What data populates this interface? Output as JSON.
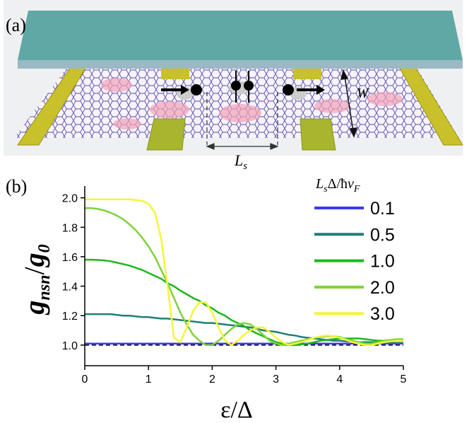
{
  "panel_a": {
    "label": "(a)",
    "width_label": "W",
    "length_label": {
      "main": "L",
      "sub": "s"
    }
  },
  "chart_data": {
    "type": "line",
    "panel_label": "(b)",
    "x_label": "ε/Δ",
    "y_label": {
      "main": "g",
      "sub": "nsn",
      "sep": "/",
      "main2": "g",
      "sub2": "0"
    },
    "legend_title": {
      "a": "L",
      "a_sub": "s",
      "b": "Δ/ħ",
      "c": "v",
      "c_sub": "F"
    },
    "x": [
      0,
      0.1,
      0.2,
      0.3,
      0.4,
      0.5,
      0.6,
      0.7,
      0.8,
      0.9,
      1.0,
      1.1,
      1.2,
      1.3,
      1.4,
      1.5,
      1.6,
      1.7,
      1.8,
      1.9,
      2.0,
      2.1,
      2.2,
      2.3,
      2.4,
      2.5,
      2.6,
      2.7,
      2.8,
      2.9,
      3.0,
      3.1,
      3.2,
      3.3,
      3.4,
      3.5,
      3.6,
      3.7,
      3.8,
      3.9,
      4.0,
      4.1,
      4.2,
      4.3,
      4.4,
      4.5,
      4.6,
      4.7,
      4.8,
      4.9,
      5.0
    ],
    "series": [
      {
        "name": "0.1",
        "color": "#3b3bf0",
        "values": [
          1.01,
          1.01,
          1.01,
          1.01,
          1.01,
          1.01,
          1.01,
          1.01,
          1.01,
          1.01,
          1.01,
          1.01,
          1.01,
          1.01,
          1.01,
          1.01,
          1.01,
          1.01,
          1.01,
          1.01,
          1.01,
          1.01,
          1.01,
          1.01,
          1.01,
          1.01,
          1.01,
          1.01,
          1.01,
          1.01,
          1.01,
          1.01,
          1.01,
          1.01,
          1.01,
          1.01,
          1.01,
          1.01,
          1.01,
          1.01,
          1.01,
          1.01,
          1.01,
          1.01,
          1.01,
          1.01,
          1.01,
          1.01,
          1.01,
          1.01,
          1.01
        ]
      },
      {
        "name": "0.5",
        "color": "#1f7f7a",
        "values": [
          1.21,
          1.21,
          1.21,
          1.21,
          1.21,
          1.205,
          1.2,
          1.2,
          1.195,
          1.19,
          1.19,
          1.185,
          1.18,
          1.18,
          1.175,
          1.17,
          1.165,
          1.16,
          1.155,
          1.15,
          1.15,
          1.145,
          1.14,
          1.135,
          1.13,
          1.125,
          1.12,
          1.11,
          1.1,
          1.095,
          1.09,
          1.08,
          1.07,
          1.065,
          1.055,
          1.05,
          1.045,
          1.04,
          1.035,
          1.03,
          1.03,
          1.025,
          1.025,
          1.02,
          1.02,
          1.02,
          1.02,
          1.015,
          1.015,
          1.015,
          1.015
        ]
      },
      {
        "name": "1.0",
        "color": "#1cb81c",
        "values": [
          1.58,
          1.58,
          1.578,
          1.575,
          1.57,
          1.56,
          1.55,
          1.54,
          1.525,
          1.51,
          1.49,
          1.47,
          1.45,
          1.42,
          1.4,
          1.37,
          1.345,
          1.32,
          1.3,
          1.27,
          1.25,
          1.22,
          1.2,
          1.17,
          1.15,
          1.13,
          1.1,
          1.08,
          1.06,
          1.04,
          1.02,
          1.01,
          1.0,
          1.0,
          1.005,
          1.01,
          1.02,
          1.03,
          1.035,
          1.04,
          1.045,
          1.045,
          1.045,
          1.045,
          1.04,
          1.035,
          1.03,
          1.03,
          1.03,
          1.03,
          1.03
        ]
      },
      {
        "name": "2.0",
        "color": "#7fd33a",
        "values": [
          1.93,
          1.93,
          1.925,
          1.915,
          1.9,
          1.88,
          1.855,
          1.82,
          1.78,
          1.73,
          1.67,
          1.6,
          1.51,
          1.42,
          1.32,
          1.22,
          1.14,
          1.07,
          1.03,
          1.0,
          1.0,
          1.03,
          1.07,
          1.11,
          1.14,
          1.15,
          1.14,
          1.11,
          1.07,
          1.03,
          1.01,
          1.0,
          1.01,
          1.02,
          1.03,
          1.04,
          1.05,
          1.055,
          1.06,
          1.06,
          1.055,
          1.04,
          1.03,
          1.02,
          1.01,
          1.01,
          1.02,
          1.03,
          1.035,
          1.04,
          1.04
        ]
      },
      {
        "name": "3.0",
        "color": "#f5f53a",
        "values": [
          1.99,
          1.99,
          1.99,
          1.99,
          1.99,
          1.99,
          1.99,
          1.99,
          1.985,
          1.98,
          1.96,
          1.9,
          1.72,
          1.4,
          1.05,
          1.02,
          1.12,
          1.23,
          1.29,
          1.29,
          1.22,
          1.12,
          1.03,
          1.0,
          1.03,
          1.07,
          1.1,
          1.12,
          1.12,
          1.09,
          1.05,
          1.02,
          1.0,
          1.01,
          1.02,
          1.035,
          1.05,
          1.06,
          1.065,
          1.06,
          1.05,
          1.035,
          1.02,
          1.01,
          1.0,
          1.0,
          1.01,
          1.02,
          1.025,
          1.03,
          1.03
        ]
      }
    ],
    "reference_line": 1.0,
    "xlim": [
      0,
      5
    ],
    "ylim": [
      0.86,
      2.08
    ],
    "xticks": [
      0,
      1,
      2,
      3,
      4,
      5
    ],
    "yticks": [
      {
        "value": 1.0,
        "label": "1.0"
      },
      {
        "value": 1.2,
        "label": "1.2"
      },
      {
        "value": 1.4,
        "label": "1.4"
      },
      {
        "value": 1.6,
        "label": "1.6"
      },
      {
        "value": 1.8,
        "label": "1.8"
      },
      {
        "value": 2.0,
        "label": "2.0"
      }
    ]
  }
}
